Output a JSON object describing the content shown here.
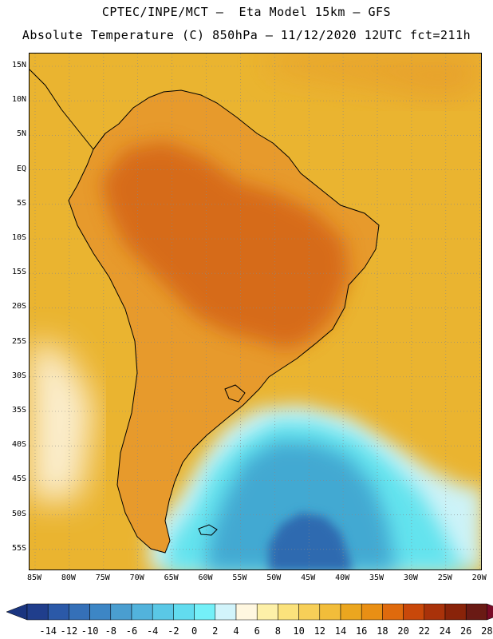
{
  "header": {
    "title_line1": "CPTEC/INPE/MCT –  Eta Model 15km – GFS",
    "title_line2": "Absolute Temperature (C) 850hPa – 11/12/2020 12UTC fct=211h"
  },
  "map": {
    "lat_labels": [
      "15N",
      "10N",
      "5N",
      "EQ",
      "5S",
      "10S",
      "15S",
      "20S",
      "25S",
      "30S",
      "35S",
      "40S",
      "45S",
      "50S",
      "55S"
    ],
    "lon_labels": [
      "85W",
      "80W",
      "75W",
      "70W",
      "65W",
      "60W",
      "55W",
      "50W",
      "45W",
      "40W",
      "35W",
      "30W",
      "25W",
      "20W"
    ],
    "colors": {
      "ocean_warm": "#eab430",
      "land_warm": "#e79a2c",
      "hot": "#d46418",
      "cold_deep": "#2f6bb0",
      "cold_mid": "#43a9d2",
      "cyan": "#64e3ee",
      "light_cyan": "#cdf3f8",
      "cream": "#fdf4e0",
      "coast_line": "#000000",
      "grid_line": "#888888"
    }
  },
  "colorbar": {
    "labels": [
      "-14",
      "-12",
      "-10",
      "-8",
      "-6",
      "-4",
      "-2",
      "0",
      "2",
      "4",
      "6",
      "8",
      "10",
      "12",
      "14",
      "16",
      "18",
      "20",
      "22",
      "24",
      "26",
      "28"
    ],
    "colors": [
      "#203e8c",
      "#2b59a8",
      "#3570b8",
      "#3d86c5",
      "#4a9ed0",
      "#52b3dc",
      "#5ac8e6",
      "#62dcef",
      "#74f0f8",
      "#d2f4fb",
      "#fff7e0",
      "#fdf0a8",
      "#fbe27c",
      "#f7cf58",
      "#f2bd3a",
      "#eba61f",
      "#e98f14",
      "#df6a0d",
      "#c9480a",
      "#a9320a",
      "#892309",
      "#6a1a14"
    ],
    "low_end_color": "#1a3580",
    "high_end_color": "#7a0a26"
  }
}
